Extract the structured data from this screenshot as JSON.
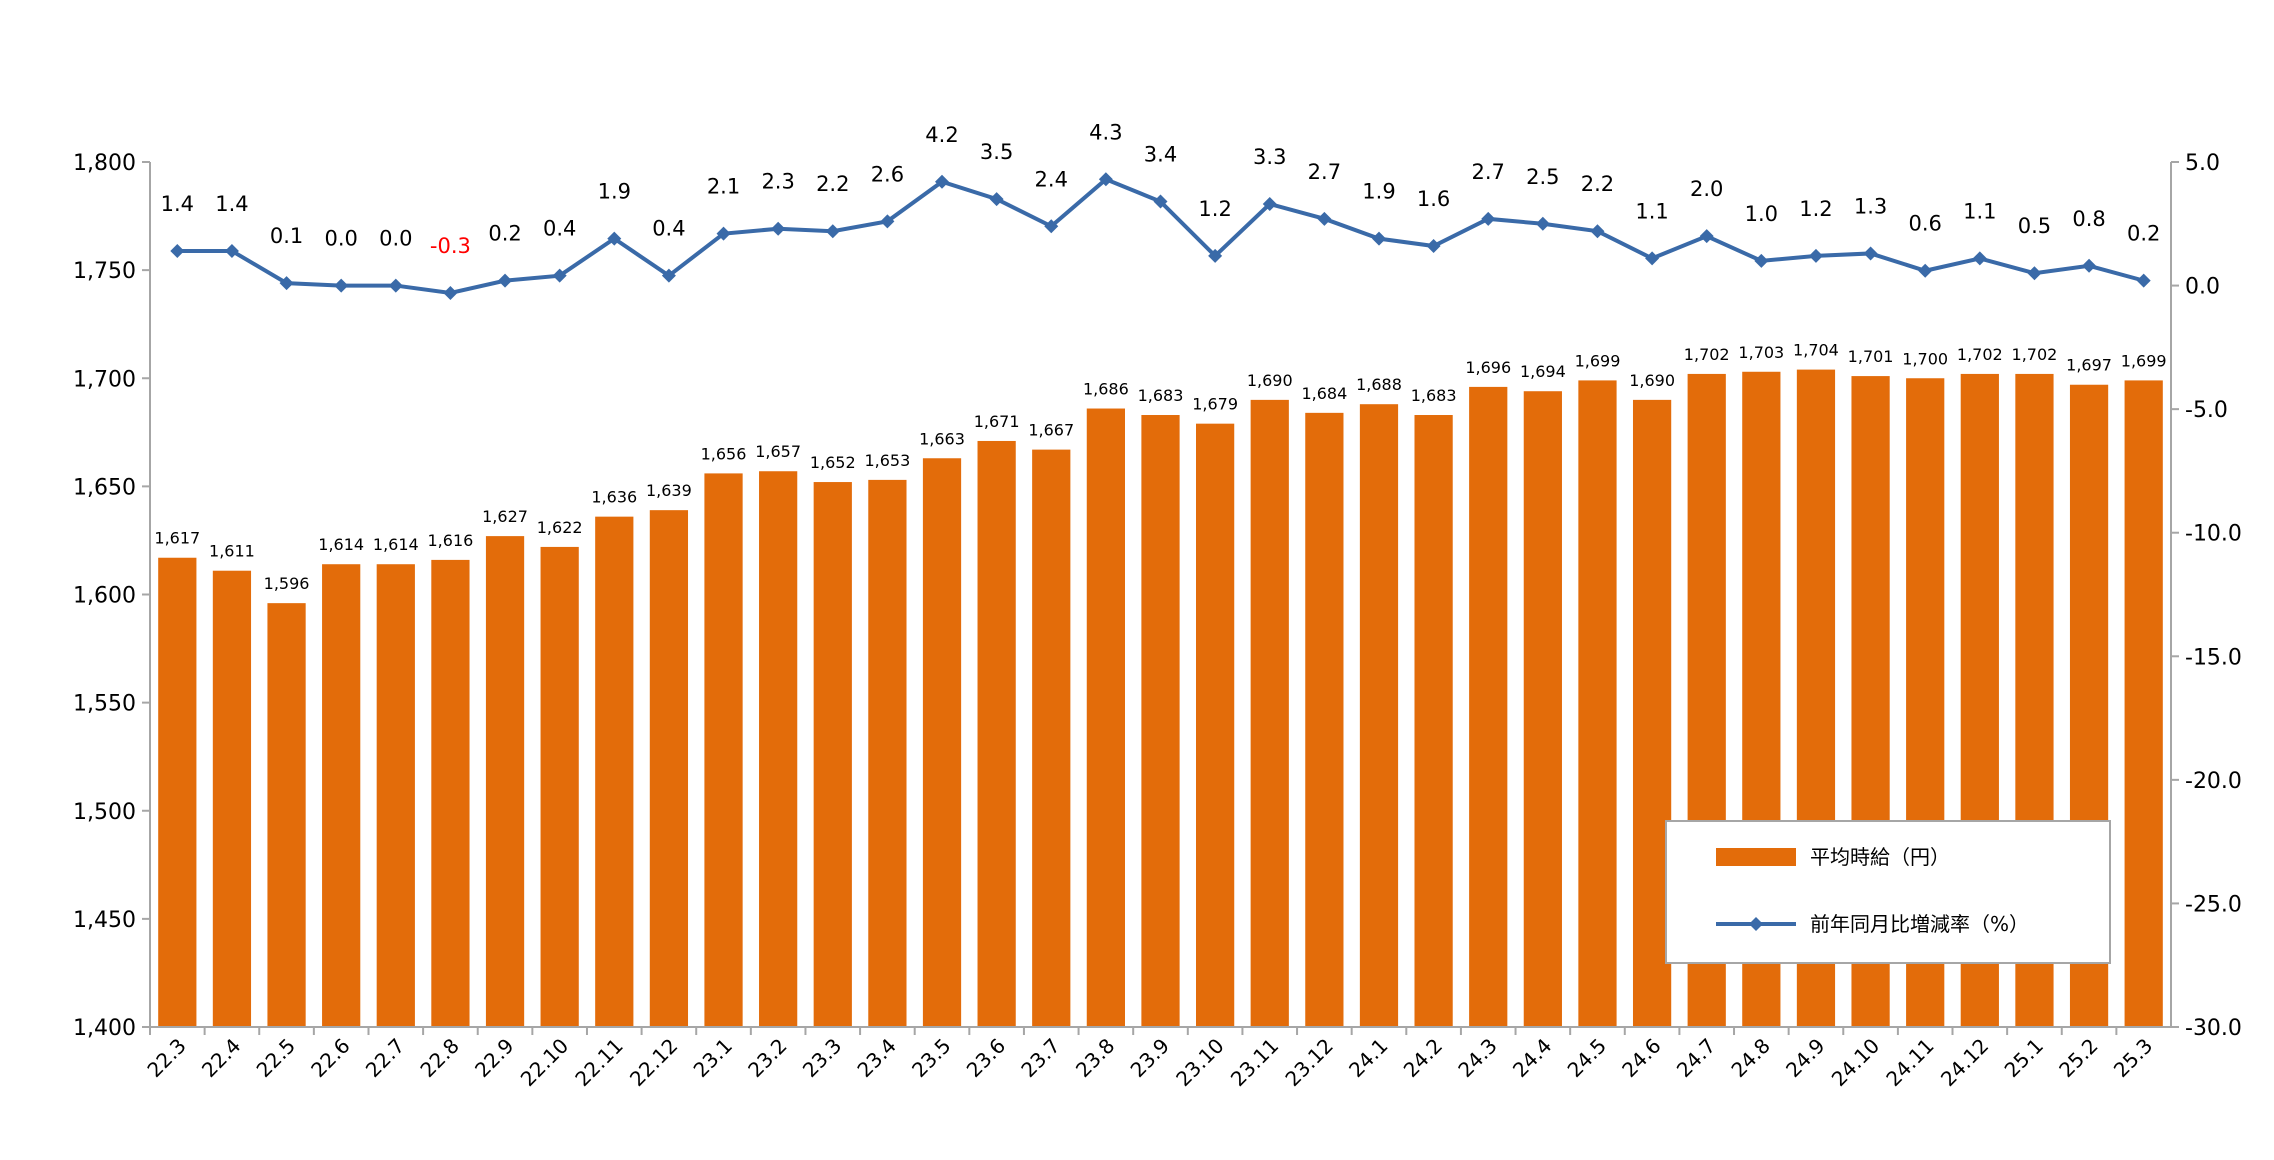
{
  "chart_data": {
    "type": "bar+line",
    "categories": [
      "22.3",
      "22.4",
      "22.5",
      "22.6",
      "22.7",
      "22.8",
      "22.9",
      "22.10",
      "22.11",
      "22.12",
      "23.1",
      "23.2",
      "23.3",
      "23.4",
      "23.5",
      "23.6",
      "23.7",
      "23.8",
      "23.9",
      "23.10",
      "23.11",
      "23.12",
      "24.1",
      "24.2",
      "24.3",
      "24.4",
      "24.5",
      "24.6",
      "24.7",
      "24.8",
      "24.9",
      "24.10",
      "24.11",
      "24.12",
      "25.1",
      "25.2",
      "25.3"
    ],
    "series": [
      {
        "name": "平均時給（円）",
        "type": "bar",
        "axis": "left",
        "color": "#E36C0A",
        "values": [
          1617,
          1611,
          1596,
          1614,
          1614,
          1616,
          1627,
          1622,
          1636,
          1639,
          1656,
          1657,
          1652,
          1653,
          1663,
          1671,
          1667,
          1686,
          1683,
          1679,
          1690,
          1684,
          1688,
          1683,
          1696,
          1694,
          1699,
          1690,
          1702,
          1703,
          1704,
          1701,
          1700,
          1702,
          1702,
          1697,
          1699
        ],
        "labels": [
          "1,617",
          "1,611",
          "1,596",
          "1,614",
          "1,614",
          "1,616",
          "1,627",
          "1,622",
          "1,636",
          "1,639",
          "1,656",
          "1,657",
          "1,652",
          "1,653",
          "1,663",
          "1,671",
          "1,667",
          "1,686",
          "1,683",
          "1,679",
          "1,690",
          "1,684",
          "1,688",
          "1,683",
          "1,696",
          "1,694",
          "1,699",
          "1,690",
          "1,702",
          "1,703",
          "1,704",
          "1,701",
          "1,700",
          "1,702",
          "1,702",
          "1,697",
          "1,699"
        ]
      },
      {
        "name": "前年同月比増減率（%）",
        "type": "line",
        "axis": "right",
        "color": "#3A6AA8",
        "negative_label_color": "#FF0000",
        "values": [
          1.4,
          1.4,
          0.1,
          0.0,
          0.0,
          -0.3,
          0.2,
          0.4,
          1.9,
          0.4,
          2.1,
          2.3,
          2.2,
          2.6,
          4.2,
          3.5,
          2.4,
          4.3,
          3.4,
          1.2,
          3.3,
          2.7,
          1.9,
          1.6,
          2.7,
          2.5,
          2.2,
          1.1,
          2.0,
          1.0,
          1.2,
          1.3,
          0.6,
          1.1,
          0.5,
          0.8,
          0.2
        ],
        "labels": [
          "1.4",
          "1.4",
          "0.1",
          "0.0",
          "0.0",
          "-0.3",
          "0.2",
          "0.4",
          "1.9",
          "0.4",
          "2.1",
          "2.3",
          "2.2",
          "2.6",
          "4.2",
          "3.5",
          "2.4",
          "4.3",
          "3.4",
          "1.2",
          "3.3",
          "2.7",
          "1.9",
          "1.6",
          "2.7",
          "2.5",
          "2.2",
          "1.1",
          "2.0",
          "1.0",
          "1.2",
          "1.3",
          "0.6",
          "1.1",
          "0.5",
          "0.8",
          "0.2"
        ]
      }
    ],
    "y_left": {
      "range": [
        1400,
        1800
      ],
      "ticks": [
        "1,400",
        "1,450",
        "1,500",
        "1,550",
        "1,600",
        "1,650",
        "1,700",
        "1,750",
        "1,800"
      ]
    },
    "y_right": {
      "range": [
        -30,
        5
      ],
      "ticks": [
        "-30.0",
        "-25.0",
        "-20.0",
        "-15.0",
        "-10.0",
        "-5.0",
        "0.0",
        "5.0"
      ]
    },
    "grid": false,
    "legend": {
      "placement": "bottom-right",
      "entries": [
        "平均時給（円）",
        "前年同月比増減率（%）"
      ]
    }
  }
}
